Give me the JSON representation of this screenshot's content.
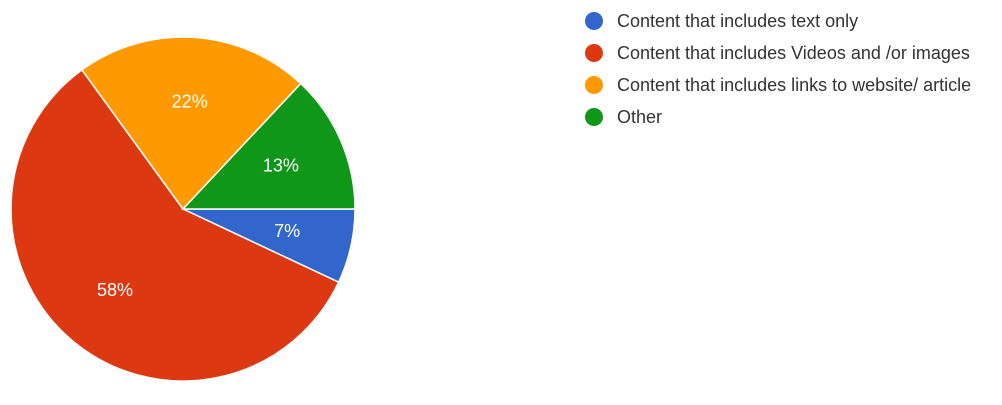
{
  "chart_data": {
    "type": "pie",
    "categories": [
      "Content that includes text only",
      "Content that includes Videos and /or images",
      "Content that includes links to website/ article",
      "Other"
    ],
    "values": [
      7,
      58,
      22,
      13
    ],
    "value_labels": [
      "7%",
      "58%",
      "22%",
      "13%"
    ],
    "colors": [
      "#3366cc",
      "#dc3912",
      "#ff9900",
      "#109618"
    ],
    "legend_position": "right"
  }
}
